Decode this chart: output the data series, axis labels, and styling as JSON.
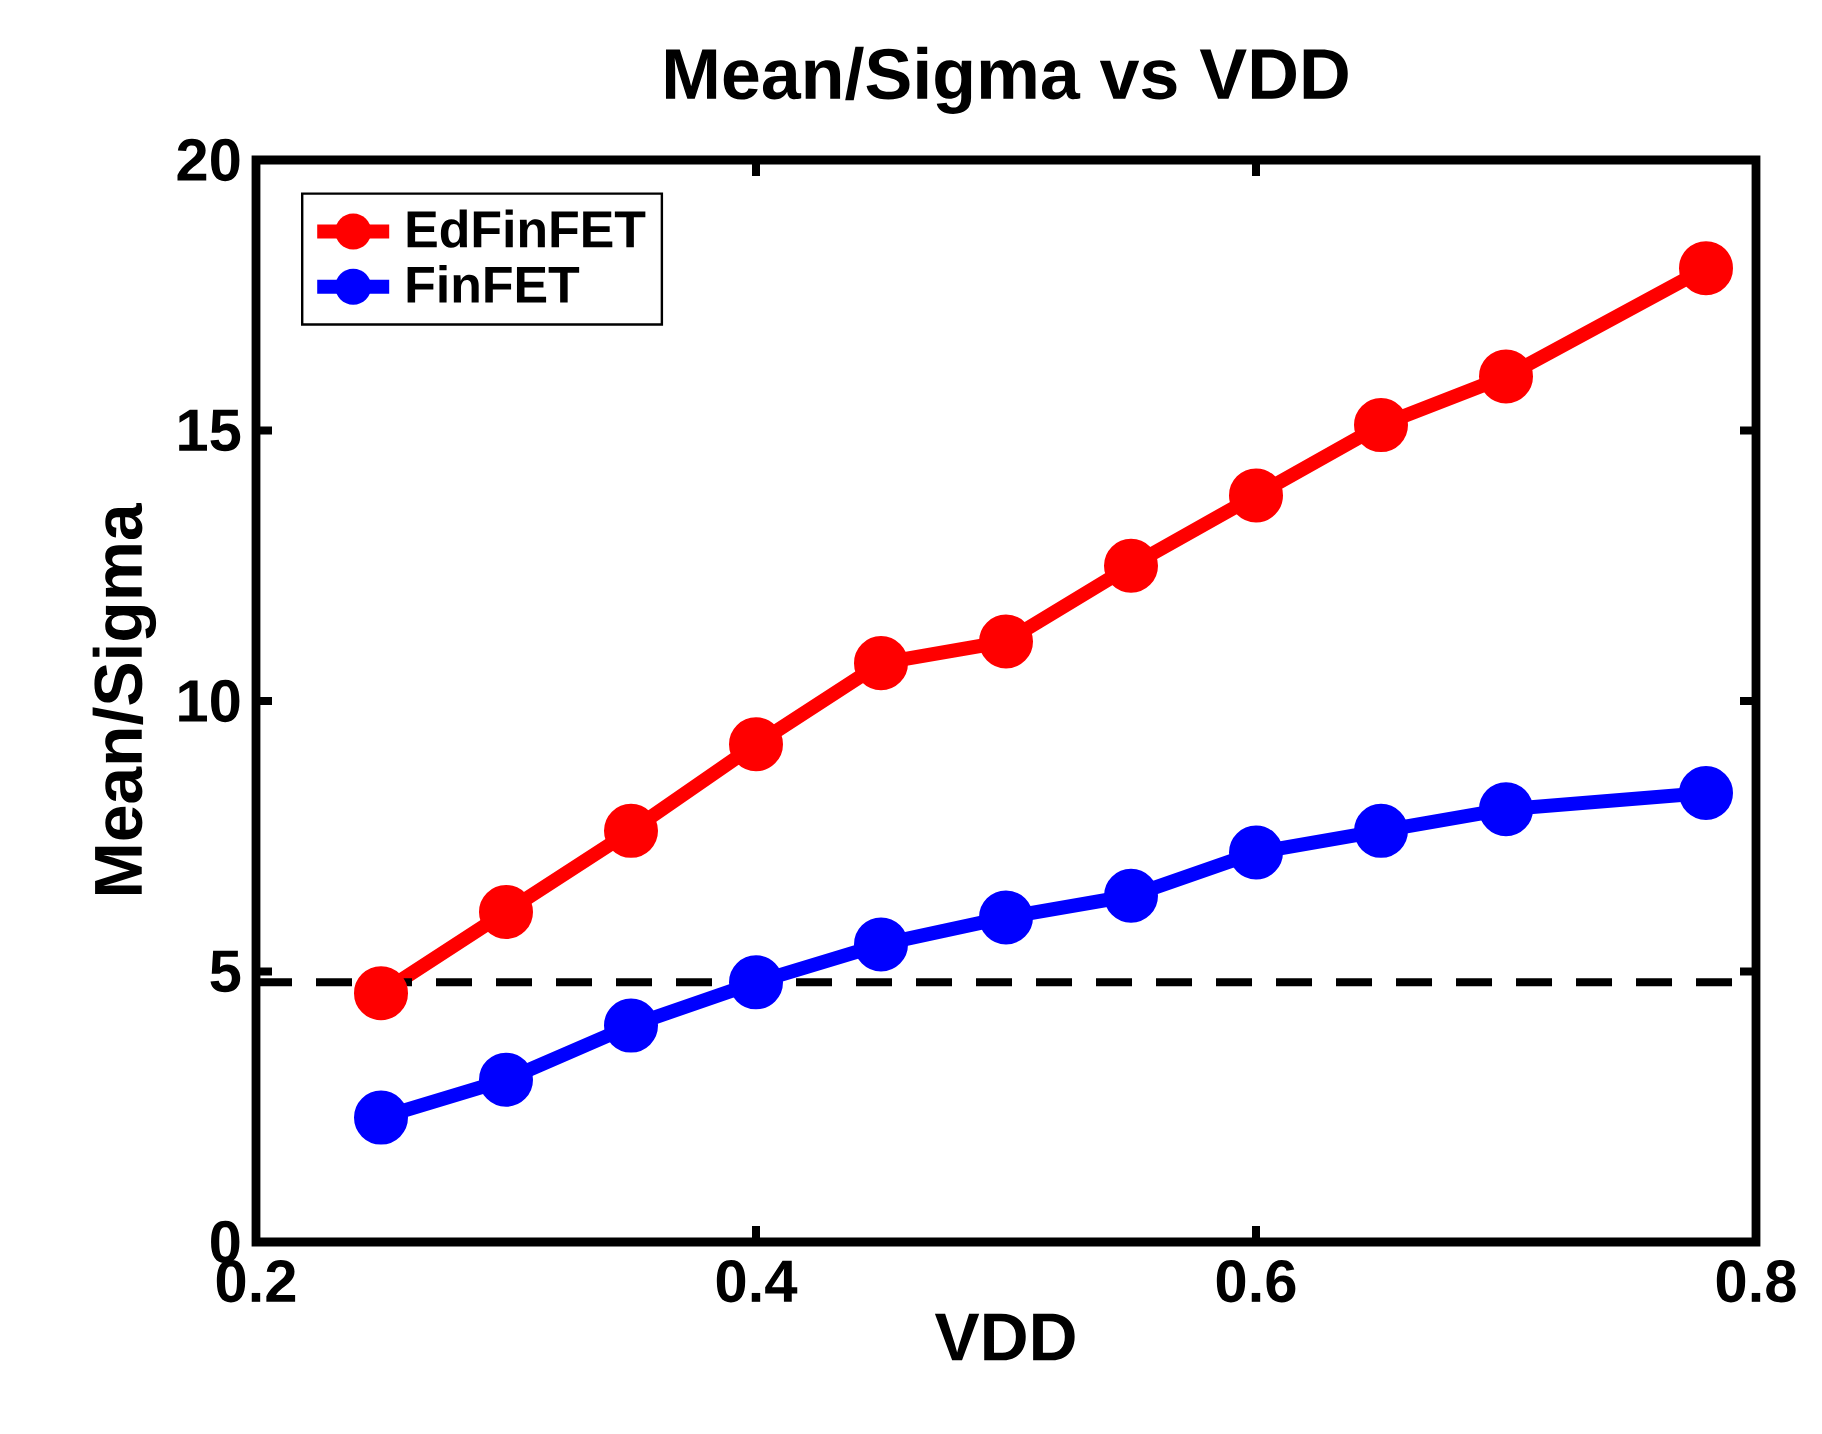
{
  "chart_data": {
    "type": "line",
    "title": "Mean/Sigma vs VDD",
    "xlabel": "VDD",
    "ylabel": "Mean/Sigma",
    "x": [
      0.25,
      0.3,
      0.35,
      0.4,
      0.45,
      0.5,
      0.55,
      0.6,
      0.65,
      0.7,
      0.78
    ],
    "series": [
      {
        "name": "EdFinFET",
        "color": "#ff0000",
        "values": [
          4.6,
          6.1,
          7.6,
          9.2,
          10.7,
          11.1,
          12.5,
          13.8,
          15.1,
          16.0,
          18.0
        ]
      },
      {
        "name": "FinFET",
        "color": "#0000ff",
        "values": [
          2.3,
          3.0,
          4.0,
          4.8,
          5.5,
          6.0,
          6.4,
          7.2,
          7.6,
          8.0,
          8.3
        ]
      }
    ],
    "xlim": [
      0.2,
      0.8
    ],
    "ylim": [
      0,
      20
    ],
    "xticks": [
      0.2,
      0.4,
      0.6,
      0.8
    ],
    "yticks": [
      0,
      5,
      10,
      15,
      20
    ],
    "ref_lines": [
      {
        "axis": "y",
        "value": 4.8,
        "color": "#000000",
        "line_style": "dashed"
      }
    ],
    "legend": "top left",
    "marker": "circle",
    "line_style": "solid",
    "grid": false
  }
}
